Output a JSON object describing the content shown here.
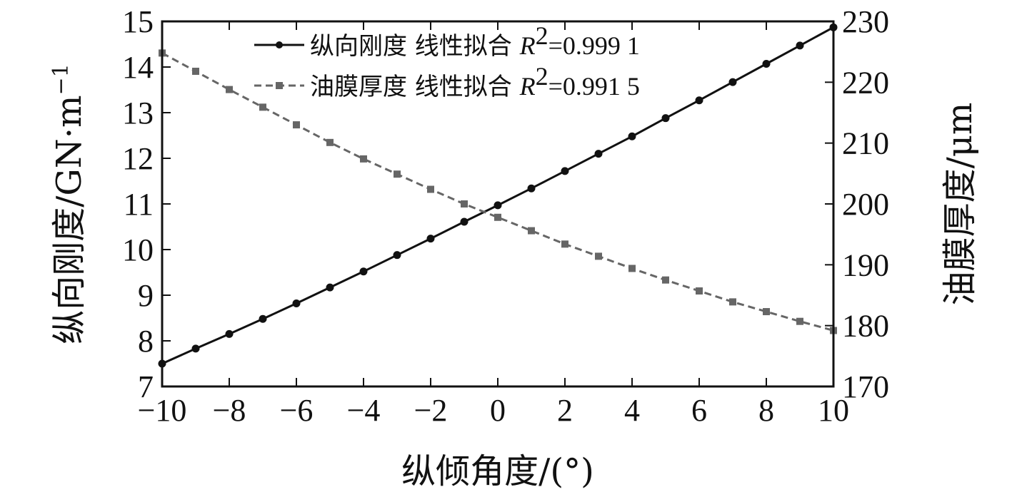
{
  "chart_data": {
    "type": "line",
    "x": [
      -10,
      -9,
      -8,
      -7,
      -6,
      -5,
      -4,
      -3,
      -2,
      -1,
      0,
      1,
      2,
      3,
      4,
      5,
      6,
      7,
      8,
      9,
      10
    ],
    "xlabel": "纵倾角度/(°)",
    "xlim": [
      -10,
      10
    ],
    "xticks": [
      -10,
      -8,
      -6,
      -4,
      -2,
      0,
      2,
      4,
      6,
      8,
      10
    ],
    "xtick_labels": [
      "−10",
      "−8",
      "−6",
      "−4",
      "−2",
      "0",
      "2",
      "4",
      "6",
      "8",
      "10"
    ],
    "ylabel_left": "纵向刚度/GN·m",
    "ylabel_left_sup": "−1",
    "ylim_left": [
      7,
      15
    ],
    "yticks_left": [
      7,
      8,
      9,
      10,
      11,
      12,
      13,
      14,
      15
    ],
    "ylabel_right": "油膜厚度/μm",
    "ylim_right": [
      170,
      230
    ],
    "yticks_right": [
      170,
      180,
      190,
      200,
      210,
      220,
      230
    ],
    "series": [
      {
        "name": "纵向刚度",
        "axis": "left",
        "style": "solid",
        "marker": "circle",
        "color": "#111111",
        "values": [
          7.5,
          7.83,
          8.15,
          8.48,
          8.82,
          9.17,
          9.52,
          9.88,
          10.24,
          10.61,
          10.97,
          11.34,
          11.72,
          12.1,
          12.48,
          12.88,
          13.27,
          13.67,
          14.07,
          14.47,
          14.87
        ]
      },
      {
        "name": "油膜厚度",
        "axis": "right",
        "style": "dashed",
        "marker": "square",
        "color": "#666666",
        "values": [
          224.8,
          221.8,
          218.8,
          215.9,
          213.0,
          210.1,
          207.4,
          204.9,
          202.4,
          200.0,
          197.8,
          195.6,
          193.4,
          191.4,
          189.4,
          187.5,
          185.7,
          183.9,
          182.3,
          180.7,
          179.2
        ]
      }
    ],
    "legend": {
      "placement": "top",
      "entries": [
        {
          "label": "纵向刚度  线性拟合 ",
          "r2_prefix": "R",
          "r2_sup": "2",
          "r2_value": "=0.999 1"
        },
        {
          "label": "油膜厚度  线性拟合 ",
          "r2_prefix": "R",
          "r2_sup": "2",
          "r2_value": "=0.991 5"
        }
      ]
    },
    "grid": false
  }
}
